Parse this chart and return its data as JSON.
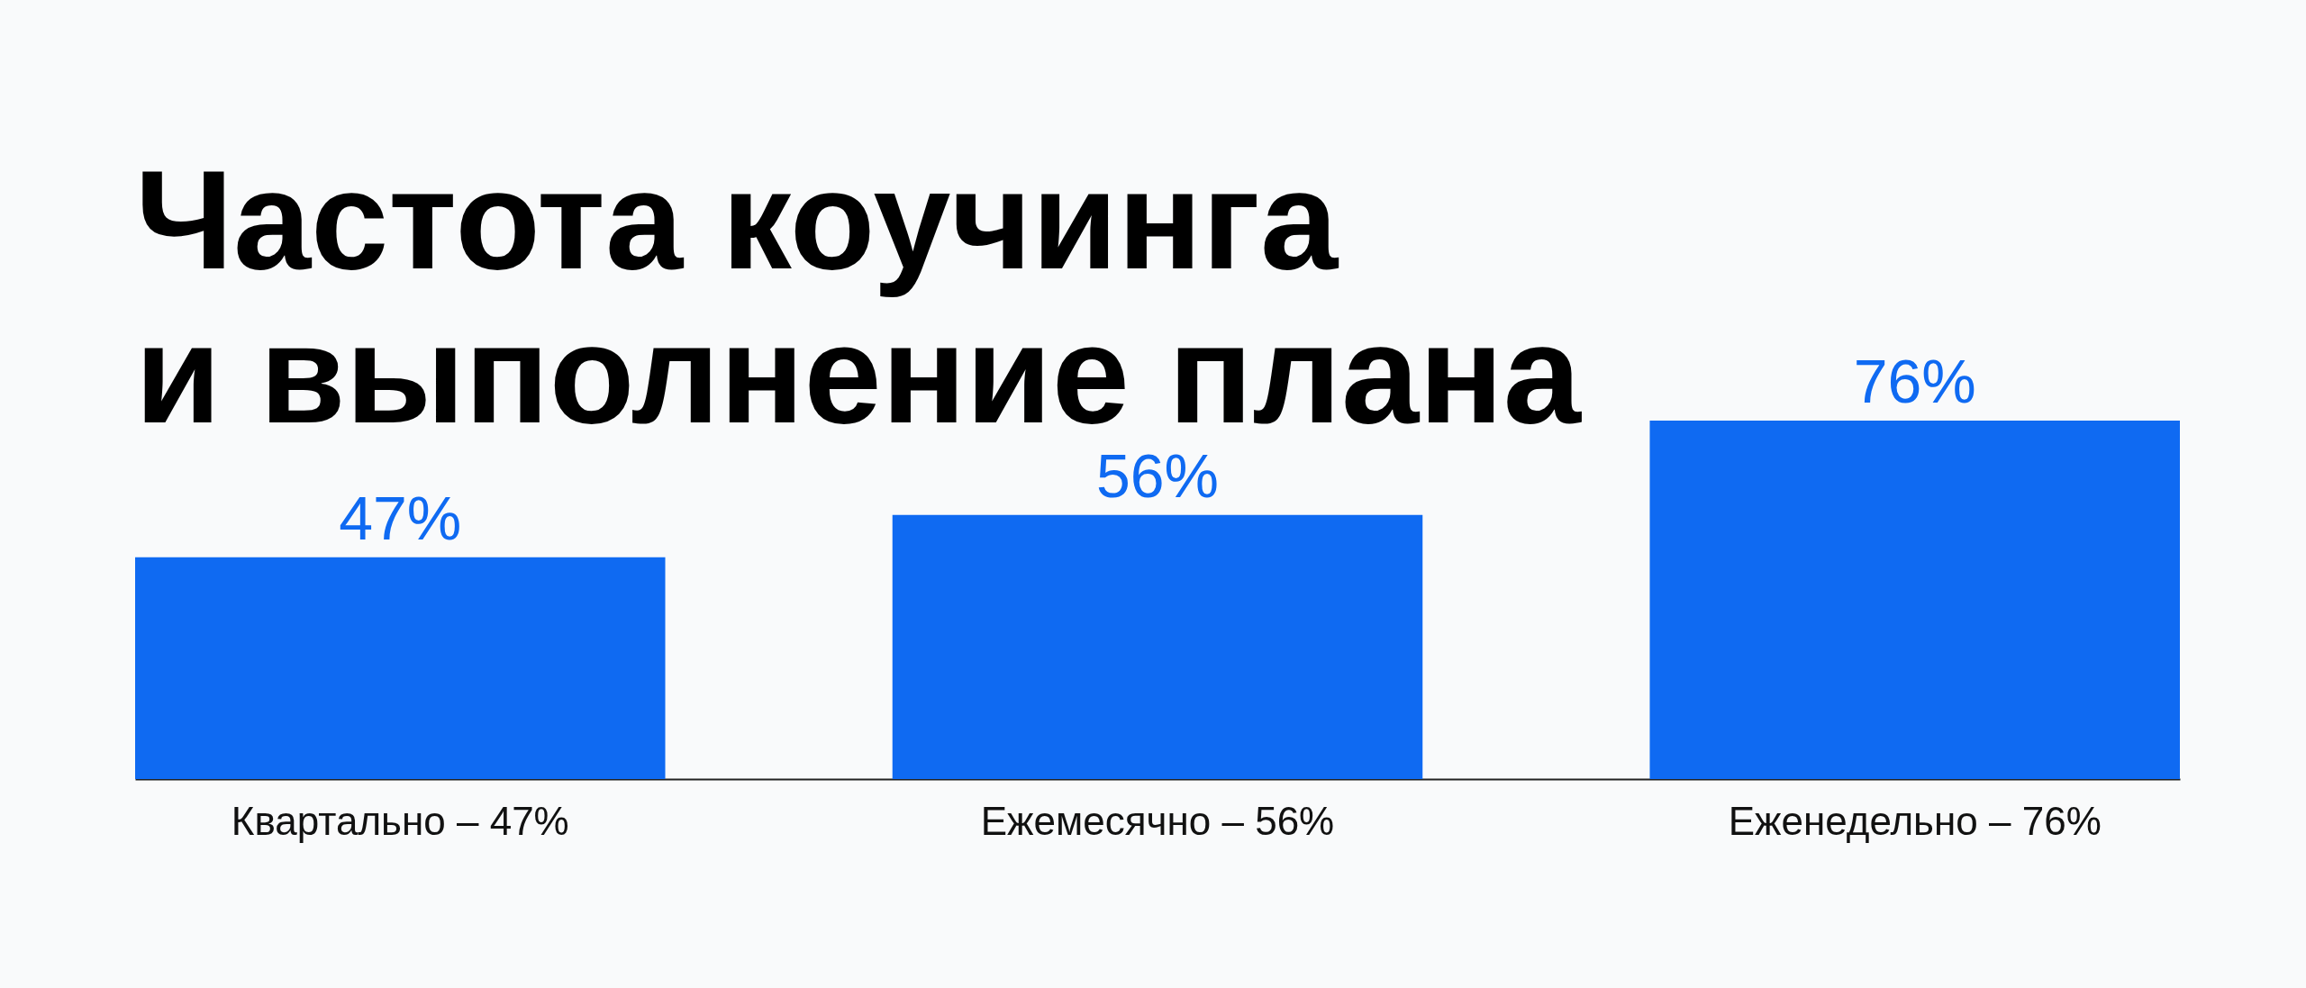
{
  "chart_data": {
    "type": "bar",
    "title": "Частота коучинга\nи выполнение плана",
    "categories": [
      "Квартально – 47%",
      "Ежемесячно – 56%",
      "Еженедельно – 76%"
    ],
    "values": [
      47,
      56,
      76
    ],
    "value_labels": [
      "47%",
      "56%",
      "76%"
    ],
    "color": "#0f6af2",
    "tick_labels": "x"
  }
}
